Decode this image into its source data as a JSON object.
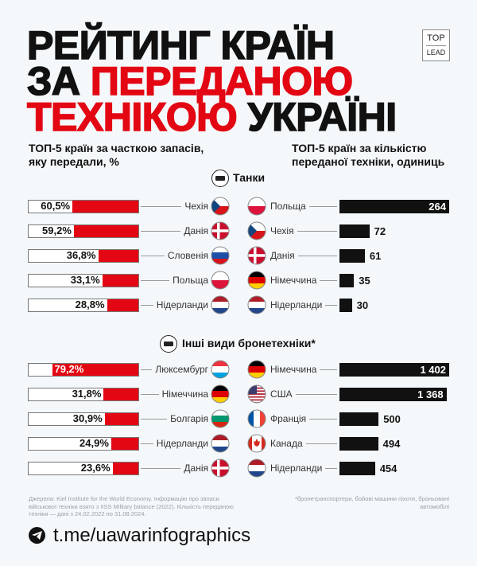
{
  "title": {
    "line1": "РЕЙТИНГ КРАЇН",
    "line2_a": "ЗА ",
    "line2_b": "ПЕРЕДАНОЮ",
    "line3_a": "ТЕХНІКОЮ",
    "line3_b": " УКРАЇНІ"
  },
  "logo": {
    "top": "TOP",
    "bottom": "LEAD"
  },
  "colors": {
    "accent": "#e30613",
    "dark": "#111111",
    "background": "#f5f8fa"
  },
  "chart_data": [
    {
      "type": "bar",
      "title": "ТОП-5 країн за часткою запасів, яку передали, %",
      "section": "Танки",
      "section_icon": "tank-icon",
      "categories": [
        "Чехія",
        "Данія",
        "Словенія",
        "Польща",
        "Нідерланди"
      ],
      "values": [
        60.5,
        59.2,
        36.8,
        33.1,
        28.8
      ],
      "labels": [
        "60,5%",
        "59,2%",
        "36,8%",
        "33,1%",
        "28,8%"
      ],
      "xlim": [
        0,
        100
      ]
    },
    {
      "type": "bar",
      "title": "ТОП-5 країн за кількістю переданої техніки, одиниць",
      "section": "Танки",
      "categories": [
        "Польща",
        "Чехія",
        "Данія",
        "Німеччина",
        "Нідерланди"
      ],
      "values": [
        264,
        72,
        61,
        35,
        30
      ],
      "labels": [
        "264",
        "72",
        "61",
        "35",
        "30"
      ]
    },
    {
      "type": "bar",
      "section": "Інші види бронетехніки*",
      "section_icon": "armored-vehicle-icon",
      "categories": [
        "Люксембург",
        "Німеччина",
        "Болгарія",
        "Нідерланди",
        "Данія"
      ],
      "values": [
        79.2,
        31.8,
        30.9,
        24.9,
        23.6
      ],
      "labels": [
        "79,2%",
        "31,8%",
        "30,9%",
        "24,9%",
        "23,6%"
      ],
      "xlim": [
        0,
        100
      ]
    },
    {
      "type": "bar",
      "section": "Інші види бронетехніки*",
      "categories": [
        "Німеччина",
        "США",
        "Франція",
        "Канада",
        "Нідерланди"
      ],
      "values": [
        1402,
        1368,
        500,
        494,
        454
      ],
      "labels": [
        "1 402",
        "1 368",
        "500",
        "494",
        "454"
      ]
    }
  ],
  "headers": {
    "left": "ТОП-5 країн за часткою запасів, яку передали, %",
    "right": "ТОП-5 країн за кількістю переданої техніки, одиниць",
    "tanks": "Танки",
    "other": "Інші види бронетехніки*"
  },
  "footer": {
    "source": "Джерела: Kiel Institute for the World Economy. Інформацію про запаси військової техніки взято з IISS Military balance (2022). Кількість переданою техніки — дані з 24.02.2022 по 31.08.2024.",
    "note": "*бронетранспортери, бойові машини піхоти, броньовані автомобілі",
    "link": "t.me/uawarinfographics"
  }
}
